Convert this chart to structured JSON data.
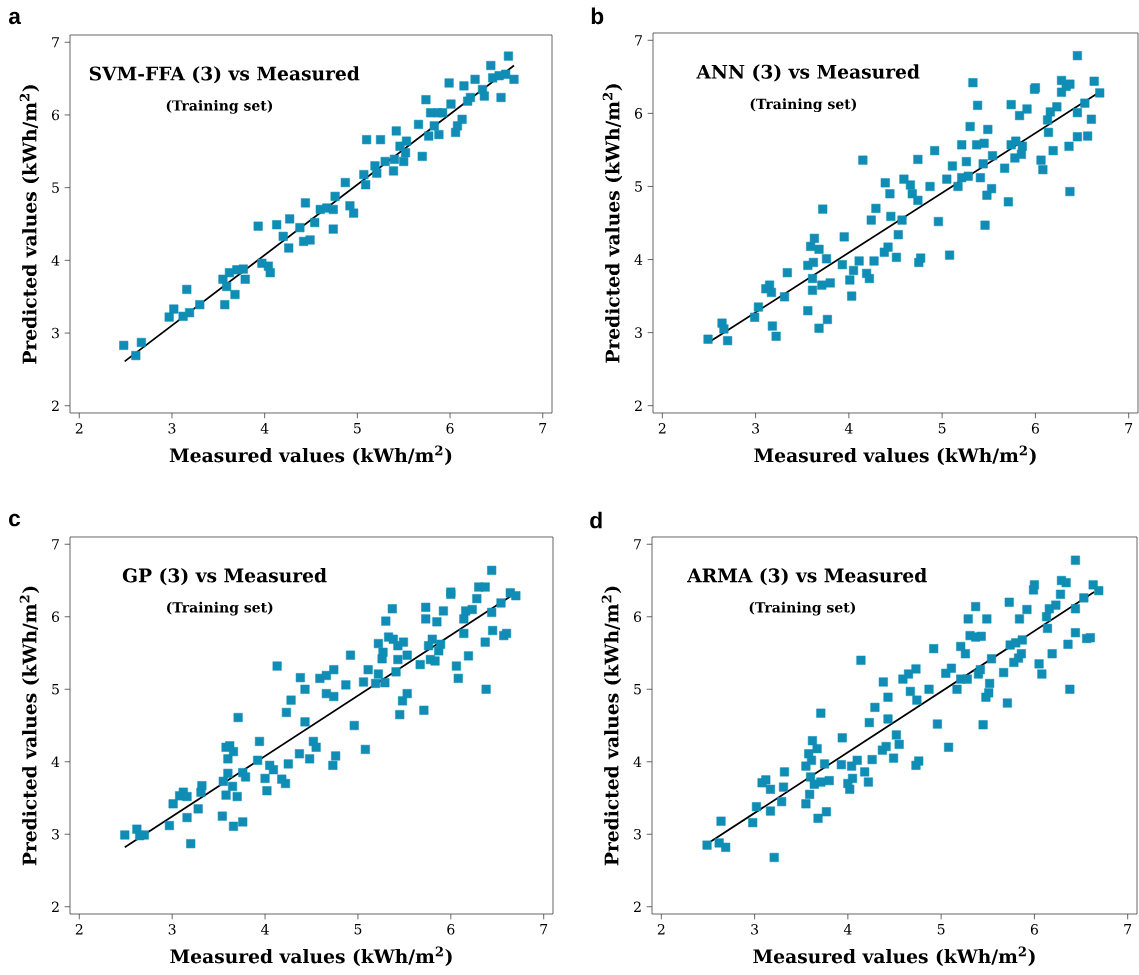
{
  "chart_data": [
    {
      "type": "scatter",
      "title": "SVM-FFA (3) vs Measured",
      "subtitle": "(Training set)",
      "annotations": [
        "a"
      ],
      "xlabel": "Measured values (kWh/m$^{2}$)",
      "ylabel": "Predicted values (kWh/m$^{2}$)",
      "xlim": [
        1.9,
        7.1
      ],
      "ylim": [
        1.9,
        7.1
      ],
      "xticks": [
        2,
        3,
        4,
        5,
        6,
        7
      ],
      "yticks": [
        2,
        3,
        4,
        5,
        6,
        7
      ],
      "series": [
        {
          "marker": "square",
          "color": "#108db5",
          "x": [
            2.48,
            2.61,
            2.67,
            2.97,
            3.02,
            3.12,
            3.16,
            3.19,
            3.3,
            3.55,
            3.57,
            3.59,
            3.62,
            3.68,
            3.7,
            3.77,
            3.79,
            3.93,
            3.97,
            4.04,
            4.06,
            4.13,
            4.2,
            4.26,
            4.27,
            4.38,
            4.42,
            4.44,
            4.49,
            4.54,
            4.6,
            4.67,
            4.74,
            4.74,
            4.76,
            4.87,
            4.92,
            4.96,
            5.07,
            5.09,
            5.1,
            5.19,
            5.21,
            5.25,
            5.3,
            5.39,
            5.4,
            5.42,
            5.46,
            5.5,
            5.52,
            5.53,
            5.66,
            5.7,
            5.74,
            5.77,
            5.79,
            5.83,
            5.87,
            5.88,
            5.92,
            5.99,
            6.01,
            6.06,
            6.08,
            6.13,
            6.15,
            6.19,
            6.22,
            6.27,
            6.35,
            6.37,
            6.44,
            6.46,
            6.55,
            6.53,
            6.6,
            6.63,
            6.69
          ],
          "values": [
            2.83,
            2.69,
            2.87,
            3.22,
            3.33,
            3.23,
            3.6,
            3.28,
            3.39,
            3.74,
            3.39,
            3.64,
            3.83,
            3.53,
            3.87,
            3.88,
            3.74,
            4.47,
            3.96,
            3.92,
            3.83,
            4.49,
            4.33,
            4.17,
            4.57,
            4.45,
            4.26,
            4.79,
            4.28,
            4.52,
            4.7,
            4.72,
            4.7,
            4.43,
            4.88,
            5.07,
            4.75,
            4.65,
            5.18,
            5.04,
            5.66,
            5.3,
            5.2,
            5.66,
            5.36,
            5.23,
            5.39,
            5.78,
            5.57,
            5.36,
            5.48,
            5.64,
            5.87,
            5.43,
            6.21,
            5.71,
            6.03,
            5.85,
            6.03,
            5.73,
            6.03,
            6.44,
            6.15,
            5.76,
            5.85,
            5.94,
            6.4,
            6.19,
            6.24,
            6.49,
            6.35,
            6.26,
            6.68,
            6.51,
            6.24,
            6.54,
            6.56,
            6.81,
            6.49
          ]
        },
        {
          "type": "line",
          "color": "#000000",
          "line_style": "solid",
          "x": [
            2.49,
            6.69
          ],
          "values": [
            2.61,
            6.68
          ]
        }
      ]
    },
    {
      "type": "scatter",
      "title": "ANN (3) vs Measured",
      "subtitle": "(Training set)",
      "annotations": [
        "b"
      ],
      "xlabel": "Measured values (kWh/m$^{2}$)",
      "ylabel": "Predicted values (kWh/m$^{2}$)",
      "xlim": [
        1.9,
        7.1
      ],
      "ylim": [
        1.9,
        7.1
      ],
      "xticks": [
        2,
        3,
        4,
        5,
        6,
        7
      ],
      "yticks": [
        2,
        3,
        4,
        5,
        6,
        7
      ],
      "series": [
        {
          "marker": "square",
          "color": "#108db5",
          "x": [
            2.49,
            2.64,
            2.66,
            2.7,
            2.99,
            3.03,
            3.11,
            3.15,
            3.17,
            3.18,
            3.22,
            3.31,
            3.34,
            3.56,
            3.56,
            3.59,
            3.61,
            3.61,
            3.62,
            3.63,
            3.68,
            3.68,
            3.71,
            3.72,
            3.76,
            3.77,
            3.8,
            3.93,
            3.95,
            4.01,
            4.03,
            4.05,
            4.11,
            4.15,
            4.19,
            4.22,
            4.24,
            4.27,
            4.29,
            4.38,
            4.39,
            4.42,
            4.44,
            4.45,
            4.51,
            4.53,
            4.57,
            4.59,
            4.66,
            4.68,
            4.74,
            4.74,
            4.75,
            4.77,
            4.87,
            4.92,
            4.96,
            5.05,
            5.08,
            5.11,
            5.17,
            5.21,
            5.21,
            5.26,
            5.28,
            5.3,
            5.33,
            5.37,
            5.38,
            5.41,
            5.45,
            5.44,
            5.46,
            5.48,
            5.49,
            5.53,
            5.54,
            5.67,
            5.71,
            5.74,
            5.74,
            5.78,
            5.79,
            5.83,
            5.85,
            5.86,
            5.91,
            5.99,
            6.0,
            6.06,
            6.08,
            6.13,
            6.14,
            6.16,
            6.19,
            6.23,
            6.28,
            6.28,
            6.33,
            6.36,
            6.37,
            6.37,
            6.45,
            6.45,
            6.45,
            6.53,
            6.56,
            6.6,
            6.63,
            6.69
          ],
          "values": [
            2.91,
            3.13,
            3.05,
            2.89,
            3.21,
            3.35,
            3.6,
            3.65,
            3.55,
            3.09,
            2.95,
            3.49,
            3.82,
            3.3,
            3.92,
            4.18,
            3.74,
            3.58,
            3.96,
            4.29,
            3.06,
            4.14,
            3.65,
            4.69,
            4.01,
            3.18,
            3.68,
            3.93,
            4.31,
            3.72,
            3.5,
            3.85,
            3.98,
            5.36,
            3.81,
            3.74,
            4.54,
            3.98,
            4.7,
            4.1,
            5.05,
            4.17,
            4.9,
            4.59,
            4.03,
            4.34,
            4.54,
            5.1,
            5.02,
            4.9,
            5.37,
            4.81,
            3.96,
            4.02,
            5.0,
            5.49,
            4.52,
            5.1,
            4.06,
            5.28,
            5.0,
            5.57,
            5.12,
            5.34,
            5.14,
            5.82,
            6.42,
            5.57,
            6.11,
            5.12,
            5.59,
            5.31,
            4.47,
            4.88,
            5.78,
            4.97,
            5.42,
            5.25,
            4.79,
            6.12,
            5.57,
            5.39,
            5.62,
            5.97,
            5.44,
            5.55,
            6.06,
            6.33,
            6.35,
            5.36,
            5.23,
            5.91,
            5.74,
            6.02,
            5.49,
            6.09,
            6.29,
            6.45,
            6.37,
            5.55,
            4.93,
            6.4,
            6.79,
            6.01,
            5.68,
            6.14,
            5.69,
            5.92,
            6.44,
            6.28
          ]
        },
        {
          "type": "line",
          "color": "#000000",
          "line_style": "solid",
          "x": [
            2.49,
            6.66
          ],
          "values": [
            2.86,
            6.27
          ]
        }
      ]
    },
    {
      "type": "scatter",
      "title": "GP (3) vs Measured",
      "subtitle": "(Training set)",
      "annotations": [
        "c"
      ],
      "xlabel": "Measured values (kWh/m$^{2}$)",
      "ylabel": "Predicted values (kWh/m$^{2}$)",
      "xlim": [
        1.9,
        7.1
      ],
      "ylim": [
        1.9,
        7.1
      ],
      "xticks": [
        2,
        3,
        4,
        5,
        6,
        7
      ],
      "yticks": [
        2,
        3,
        4,
        5,
        6,
        7
      ],
      "series": [
        {
          "marker": "square",
          "color": "#108db5",
          "x": [
            2.49,
            2.62,
            2.65,
            2.7,
            2.97,
            3.01,
            3.08,
            3.12,
            3.16,
            3.16,
            3.2,
            3.28,
            3.31,
            3.32,
            3.54,
            3.55,
            3.58,
            3.58,
            3.6,
            3.6,
            3.62,
            3.65,
            3.66,
            3.66,
            3.7,
            3.71,
            3.76,
            3.76,
            3.79,
            3.92,
            3.94,
            4.0,
            4.02,
            4.05,
            4.09,
            4.13,
            4.18,
            4.22,
            4.23,
            4.25,
            4.28,
            4.37,
            4.38,
            4.43,
            4.43,
            4.48,
            4.52,
            4.55,
            4.59,
            4.66,
            4.66,
            4.73,
            4.74,
            4.74,
            4.76,
            4.87,
            4.92,
            4.96,
            5.06,
            5.08,
            5.11,
            5.19,
            5.22,
            5.22,
            5.26,
            5.27,
            5.29,
            5.3,
            5.33,
            5.37,
            5.38,
            5.41,
            5.43,
            5.43,
            5.45,
            5.48,
            5.49,
            5.53,
            5.53,
            5.67,
            5.71,
            5.73,
            5.73,
            5.76,
            5.78,
            5.8,
            5.83,
            5.85,
            5.87,
            5.89,
            5.92,
            6.0,
            6.0,
            6.06,
            6.08,
            6.14,
            6.14,
            6.16,
            6.19,
            6.23,
            6.28,
            6.3,
            6.37,
            6.37,
            6.38,
            6.44,
            6.44,
            6.45,
            6.54,
            6.57,
            6.6,
            6.64,
            6.7
          ],
          "values": [
            2.99,
            3.07,
            2.98,
            2.99,
            3.12,
            3.42,
            3.53,
            3.58,
            3.23,
            3.52,
            2.87,
            3.35,
            3.58,
            3.67,
            3.25,
            3.73,
            4.2,
            3.54,
            4.04,
            3.84,
            4.22,
            3.66,
            4.14,
            3.11,
            3.52,
            4.61,
            3.17,
            3.85,
            3.79,
            4.02,
            4.28,
            3.77,
            3.6,
            3.95,
            3.89,
            5.32,
            3.76,
            3.7,
            4.68,
            3.97,
            4.85,
            4.11,
            5.16,
            5.0,
            4.55,
            4.04,
            4.28,
            4.2,
            5.15,
            4.94,
            5.19,
            3.95,
            5.27,
            4.9,
            4.08,
            5.06,
            5.47,
            4.5,
            5.1,
            4.17,
            5.27,
            5.08,
            5.21,
            5.63,
            5.42,
            5.51,
            5.09,
            5.94,
            5.72,
            6.11,
            5.69,
            5.24,
            5.6,
            5.41,
            4.65,
            4.84,
            5.65,
            4.94,
            5.47,
            5.34,
            4.71,
            6.13,
            5.97,
            5.6,
            5.41,
            5.69,
            5.39,
            5.93,
            5.53,
            5.62,
            6.08,
            6.31,
            6.34,
            5.32,
            5.15,
            5.97,
            5.77,
            6.08,
            5.46,
            6.1,
            6.25,
            6.41,
            6.41,
            5.65,
            5.0,
            6.64,
            6.06,
            5.81,
            6.19,
            5.74,
            5.77,
            6.33,
            6.29
          ]
        },
        {
          "type": "line",
          "color": "#000000",
          "line_style": "solid",
          "x": [
            2.49,
            6.64
          ],
          "values": [
            2.82,
            6.28
          ]
        }
      ]
    },
    {
      "type": "scatter",
      "title": "ARMA (3) vs Measured",
      "subtitle": "(Training set)",
      "annotations": [
        "d"
      ],
      "xlabel": "Measured values (kWh/m$^{2}$)",
      "ylabel": "Predicted values (kWh/m$^{2}$)",
      "xlim": [
        1.9,
        7.1
      ],
      "ylim": [
        1.9,
        7.1
      ],
      "xticks": [
        2,
        3,
        4,
        5,
        6,
        7
      ],
      "yticks": [
        2,
        3,
        4,
        5,
        6,
        7
      ],
      "series": [
        {
          "marker": "square",
          "color": "#108db5",
          "x": [
            2.49,
            2.62,
            2.64,
            2.69,
            2.98,
            3.02,
            3.08,
            3.12,
            3.17,
            3.17,
            3.21,
            3.29,
            3.31,
            3.32,
            3.55,
            3.55,
            3.58,
            3.59,
            3.6,
            3.61,
            3.62,
            3.64,
            3.67,
            3.68,
            3.71,
            3.71,
            3.75,
            3.77,
            3.8,
            3.93,
            3.94,
            4.0,
            4.02,
            4.04,
            4.05,
            4.1,
            4.14,
            4.18,
            4.22,
            4.23,
            4.26,
            4.29,
            4.37,
            4.38,
            4.41,
            4.43,
            4.43,
            4.49,
            4.52,
            4.55,
            4.59,
            4.65,
            4.67,
            4.73,
            4.73,
            4.74,
            4.76,
            4.87,
            4.92,
            4.96,
            5.05,
            5.08,
            5.11,
            5.17,
            5.21,
            5.21,
            5.26,
            5.28,
            5.29,
            5.31,
            5.37,
            5.37,
            5.4,
            5.42,
            5.43,
            5.45,
            5.48,
            5.49,
            5.51,
            5.52,
            5.54,
            5.67,
            5.71,
            5.73,
            5.74,
            5.78,
            5.8,
            5.83,
            5.84,
            5.86,
            5.87,
            5.92,
            5.99,
            6.0,
            6.05,
            6.08,
            6.13,
            6.14,
            6.16,
            6.19,
            6.23,
            6.28,
            6.29,
            6.34,
            6.36,
            6.38,
            6.44,
            6.44,
            6.44,
            6.53,
            6.56,
            6.6,
            6.63,
            6.69
          ],
          "values": [
            2.85,
            2.88,
            3.18,
            2.82,
            3.16,
            3.38,
            3.71,
            3.75,
            3.62,
            3.32,
            2.68,
            3.45,
            3.65,
            3.86,
            3.42,
            3.94,
            4.11,
            3.55,
            3.79,
            4.02,
            4.29,
            3.69,
            4.18,
            3.22,
            3.72,
            4.67,
            3.97,
            3.31,
            3.74,
            3.96,
            4.33,
            3.7,
            3.62,
            3.94,
            3.77,
            4.02,
            5.4,
            3.86,
            3.72,
            4.54,
            4.03,
            4.75,
            4.16,
            5.1,
            4.21,
            4.89,
            4.59,
            4.05,
            4.37,
            4.24,
            5.14,
            5.21,
            4.97,
            5.28,
            3.95,
            4.85,
            4.01,
            5.0,
            5.56,
            4.52,
            5.22,
            4.2,
            5.29,
            5.0,
            5.14,
            5.59,
            5.49,
            5.14,
            5.97,
            5.74,
            5.72,
            6.14,
            5.21,
            5.27,
            5.73,
            4.51,
            4.89,
            5.97,
            4.95,
            5.08,
            5.42,
            5.23,
            4.81,
            6.2,
            5.61,
            5.37,
            5.64,
            5.43,
            5.97,
            5.49,
            5.68,
            6.1,
            6.37,
            6.44,
            5.35,
            5.21,
            6.0,
            5.84,
            6.11,
            5.49,
            6.16,
            6.31,
            6.5,
            6.47,
            5.62,
            5.0,
            6.78,
            6.11,
            5.78,
            6.26,
            5.7,
            5.71,
            6.44,
            6.36
          ]
        },
        {
          "type": "line",
          "color": "#000000",
          "line_style": "solid",
          "x": [
            2.53,
            6.64
          ],
          "values": [
            2.9,
            6.34
          ]
        }
      ]
    }
  ]
}
